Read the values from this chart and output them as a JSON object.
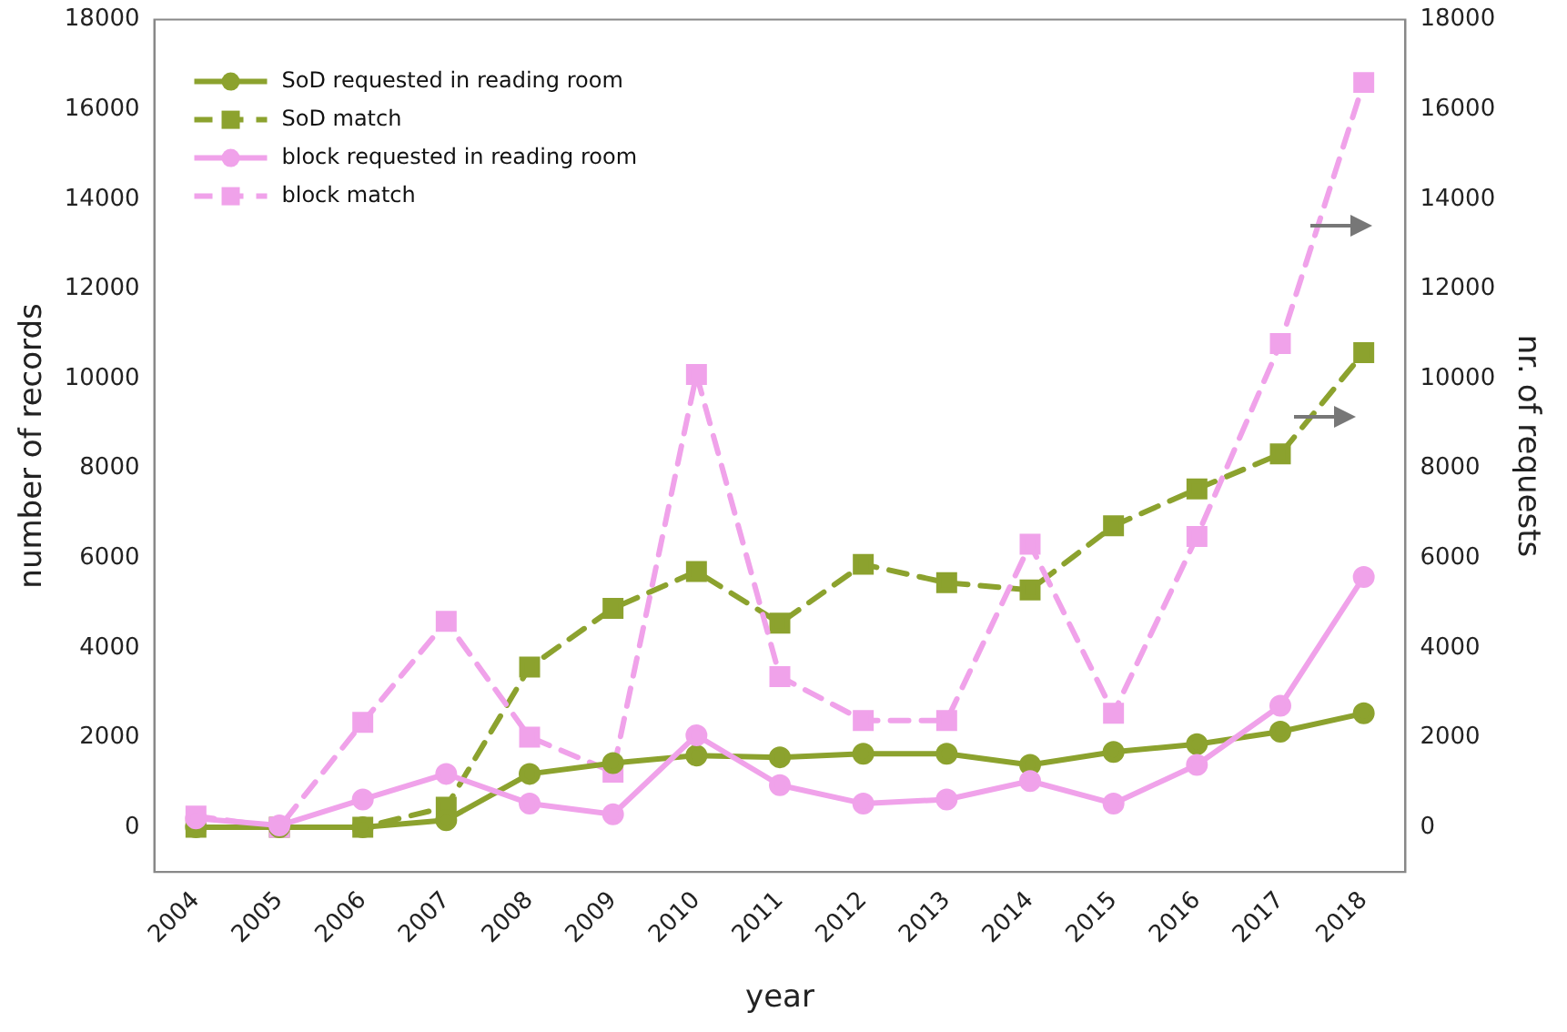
{
  "chart_data": {
    "type": "line",
    "xlabel": "year",
    "ylabel": "number of records",
    "y2label": "nr. of requests",
    "categories": [
      "2004",
      "2005",
      "2006",
      "2007",
      "2008",
      "2009",
      "2010",
      "2011",
      "2012",
      "2013",
      "2014",
      "2015",
      "2016",
      "2017",
      "2018"
    ],
    "series": [
      {
        "name": "SoD requested in reading room",
        "color": "#8ca22e",
        "marker": "circle",
        "line_style": "solid",
        "values": [
          0,
          0,
          0,
          160,
          1190,
          1430,
          1600,
          1560,
          1640,
          1640,
          1390,
          1680,
          1850,
          2130,
          2540
        ]
      },
      {
        "name": "SoD match",
        "color": "#8ca22e",
        "marker": "square",
        "line_style": "dashed",
        "axis": "y2",
        "values": [
          0,
          0,
          0,
          450,
          3570,
          4880,
          5700,
          4550,
          5860,
          5450,
          5290,
          6720,
          7540,
          8320,
          10580
        ]
      },
      {
        "name": "block requested in reading room",
        "color": "#f0a2ea",
        "marker": "circle",
        "line_style": "solid",
        "values": [
          200,
          40,
          620,
          1190,
          530,
          290,
          2050,
          940,
          530,
          620,
          1030,
          530,
          1390,
          2710,
          5580
        ]
      },
      {
        "name": "block match",
        "color": "#f0a2ea",
        "marker": "square",
        "line_style": "dashed",
        "axis": "y2",
        "values": [
          250,
          0,
          2340,
          4590,
          2010,
          1230,
          10090,
          3360,
          2380,
          2380,
          6310,
          2540,
          6480,
          10780,
          16600
        ]
      }
    ],
    "ylim": [
      -1000,
      18000
    ],
    "yticks": [
      0,
      2000,
      4000,
      6000,
      8000,
      10000,
      12000,
      14000,
      16000,
      18000
    ],
    "y2lim": [
      -1000,
      18000
    ],
    "y2ticks": [
      0,
      2000,
      4000,
      6000,
      8000,
      10000,
      12000,
      14000,
      16000,
      18000
    ],
    "grid": false,
    "legend": "top left"
  }
}
